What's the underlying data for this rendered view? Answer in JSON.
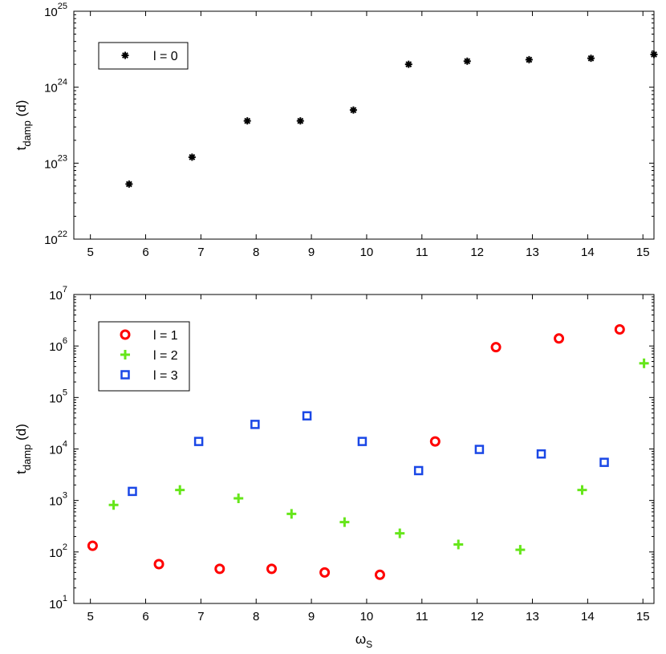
{
  "chart_data": [
    {
      "type": "scatter",
      "xlabel": "",
      "ylabel": "t",
      "ylabel_sub": "damp",
      "ylabel_unit": "(d)",
      "xlim": [
        4.7,
        15.2
      ],
      "ylim": [
        1e+22,
        1e+25
      ],
      "yscale": "log",
      "xticks": [
        "5",
        "6",
        "7",
        "8",
        "9",
        "10",
        "11",
        "12",
        "13",
        "14",
        "15"
      ],
      "yticks": [
        {
          "base": "10",
          "exp": "22"
        },
        {
          "base": "10",
          "exp": "23"
        },
        {
          "base": "10",
          "exp": "24"
        },
        {
          "base": "10",
          "exp": "25"
        }
      ],
      "legend_position": "top-left",
      "series": [
        {
          "name": "l = 0",
          "marker": "asterisk",
          "color": "#000000",
          "points": [
            [
              5.7,
              5.3e+22
            ],
            [
              6.84,
              1.2e+23
            ],
            [
              7.84,
              3.6e+23
            ],
            [
              8.8,
              3.6e+23
            ],
            [
              9.76,
              5e+23
            ],
            [
              10.76,
              2e+24
            ],
            [
              11.82,
              2.2e+24
            ],
            [
              12.94,
              2.3e+24
            ],
            [
              14.06,
              2.4e+24
            ],
            [
              15.2,
              2.7e+24
            ]
          ]
        }
      ]
    },
    {
      "type": "scatter",
      "xlabel": "ω",
      "xlabel_sub": "S",
      "ylabel": "t",
      "ylabel_sub": "damp",
      "ylabel_unit": "(d)",
      "xlim": [
        4.7,
        15.2
      ],
      "ylim": [
        10,
        10000000.0
      ],
      "yscale": "log",
      "xticks": [
        "5",
        "6",
        "7",
        "8",
        "9",
        "10",
        "11",
        "12",
        "13",
        "14",
        "15"
      ],
      "yticks": [
        {
          "base": "10",
          "exp": "1"
        },
        {
          "base": "10",
          "exp": "2"
        },
        {
          "base": "10",
          "exp": "3"
        },
        {
          "base": "10",
          "exp": "4"
        },
        {
          "base": "10",
          "exp": "5"
        },
        {
          "base": "10",
          "exp": "6"
        },
        {
          "base": "10",
          "exp": "7"
        }
      ],
      "legend_position": "top-left",
      "series": [
        {
          "name": "l = 1",
          "marker": "circle",
          "color": "#ff0000",
          "points": [
            [
              5.04,
              132
            ],
            [
              6.24,
              58
            ],
            [
              7.34,
              47
            ],
            [
              8.28,
              47
            ],
            [
              9.24,
              40
            ],
            [
              10.24,
              36
            ],
            [
              11.24,
              14000
            ],
            [
              12.34,
              950000
            ],
            [
              13.48,
              1400000
            ],
            [
              14.58,
              2100000
            ]
          ]
        },
        {
          "name": "l = 2",
          "marker": "plus",
          "color": "#66e61a",
          "points": [
            [
              5.42,
              820
            ],
            [
              6.62,
              1600
            ],
            [
              7.68,
              1100
            ],
            [
              8.64,
              550
            ],
            [
              9.6,
              380
            ],
            [
              10.6,
              230
            ],
            [
              11.66,
              140
            ],
            [
              12.78,
              110
            ],
            [
              13.9,
              1600
            ],
            [
              15.02,
              460000
            ]
          ]
        },
        {
          "name": "l = 3",
          "marker": "square",
          "color": "#1a47e6",
          "points": [
            [
              5.76,
              1500
            ],
            [
              6.96,
              14000
            ],
            [
              7.98,
              30000
            ],
            [
              8.92,
              44000
            ],
            [
              9.92,
              14000
            ],
            [
              10.94,
              3800
            ],
            [
              12.04,
              9800
            ],
            [
              13.16,
              8000
            ],
            [
              14.3,
              5500
            ]
          ]
        }
      ]
    }
  ]
}
